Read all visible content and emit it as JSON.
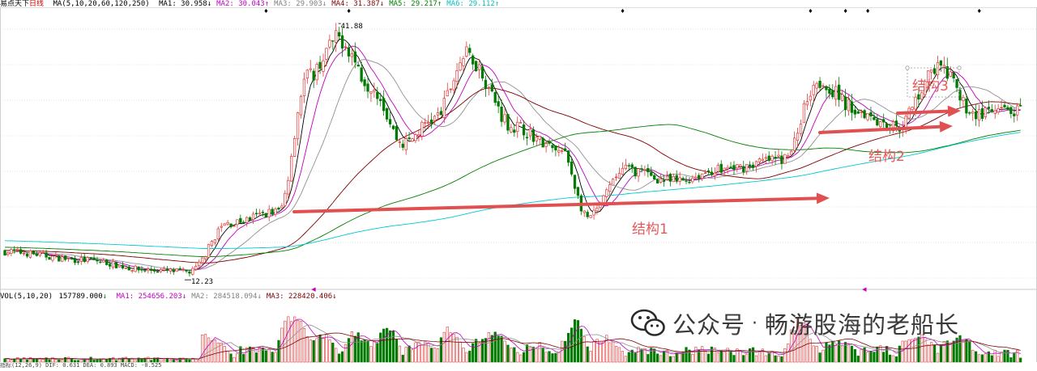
{
  "header": {
    "stock_name": "易点天下",
    "period": "日线",
    "ma_params": "MA(5,10,20,60,120,250)",
    "items": [
      {
        "label": "MA1:",
        "value": "30.958",
        "arrow": "↓",
        "color": "#000000"
      },
      {
        "label": "MA2:",
        "value": "30.043",
        "arrow": "↑",
        "color": "#c000c0"
      },
      {
        "label": "MA3:",
        "value": "29.903",
        "arrow": "↓",
        "color": "#808080"
      },
      {
        "label": "MA4:",
        "value": "31.387",
        "arrow": "↓",
        "color": "#800000"
      },
      {
        "label": "MA5:",
        "value": "29.217",
        "arrow": "↑",
        "color": "#008000"
      },
      {
        "label": "MA6:",
        "value": "29.112",
        "arrow": "↑",
        "color": "#00c0c0"
      }
    ]
  },
  "vol_header": {
    "params": "VOL(5,10,20)",
    "value": "157789.000",
    "arrow": "↓",
    "items": [
      {
        "label": "MA1:",
        "value": "254656.203",
        "arrow": "↓",
        "color": "#c000c0"
      },
      {
        "label": "MA2:",
        "value": "284518.094",
        "arrow": "↓",
        "color": "#808080"
      },
      {
        "label": "MA3:",
        "value": "228420.406",
        "arrow": "↓",
        "color": "#800000"
      }
    ]
  },
  "chart_data": {
    "type": "candlestick",
    "high_label": "41.88",
    "low_label": "12.23",
    "annotations": [
      "结构1",
      "结构2",
      "结构3"
    ],
    "price_keypoints": [
      [
        0,
        15.2
      ],
      [
        25,
        14.2
      ],
      [
        45,
        13.0
      ],
      [
        58,
        12.8
      ],
      [
        70,
        18.5
      ],
      [
        86,
        20.0
      ],
      [
        95,
        36.0
      ],
      [
        105,
        40.5
      ],
      [
        115,
        35.0
      ],
      [
        125,
        28.0
      ],
      [
        135,
        31.0
      ],
      [
        145,
        38.5
      ],
      [
        160,
        30.0
      ],
      [
        175,
        27.0
      ],
      [
        183,
        19.2
      ],
      [
        195,
        25.0
      ],
      [
        210,
        23.5
      ],
      [
        225,
        25.0
      ],
      [
        245,
        26.2
      ],
      [
        255,
        35.5
      ],
      [
        268,
        32.0
      ],
      [
        280,
        30.0
      ],
      [
        293,
        37.0
      ],
      [
        305,
        31.5
      ],
      [
        318,
        31.8
      ]
    ],
    "colors": {
      "up": "#e03838",
      "down": "#007a00",
      "arrow": "#e05050"
    }
  },
  "watermark": {
    "prefix": "公众号",
    "separator": "·",
    "name": "畅游股海的老船长"
  },
  "footer_text": "指标(12,26,9) DIF: 0.631 DEA: 0.893 MACD: -0.525"
}
